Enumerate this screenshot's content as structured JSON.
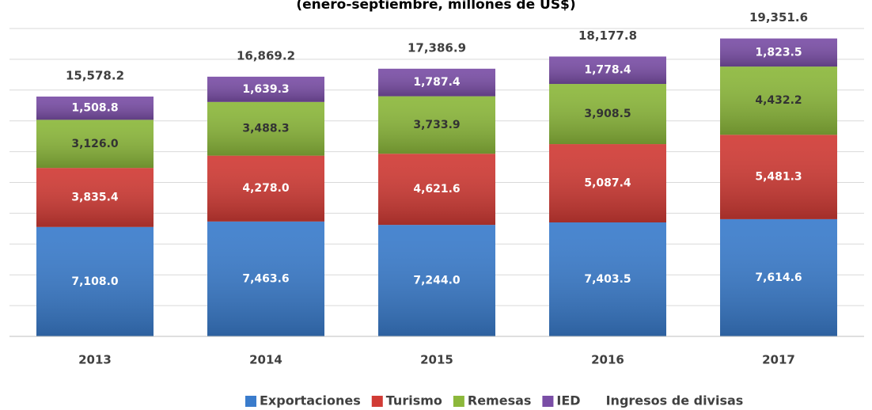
{
  "chart_data": {
    "type": "stacked_bar",
    "title": "(enero-septiembre, millones de US$)",
    "categories": [
      "2013",
      "2014",
      "2015",
      "2016",
      "2017"
    ],
    "series": [
      {
        "name": "Exportaciones",
        "color": "#3a7ccc",
        "values": [
          7108.0,
          7463.6,
          7244.0,
          7403.5,
          7614.6
        ],
        "value_labels": [
          "7,108.0",
          "7,463.6",
          "7,244.0",
          "7,403.5",
          "7,614.6"
        ]
      },
      {
        "name": "Turismo",
        "color": "#d13b35",
        "values": [
          3835.4,
          4278.0,
          4621.6,
          5087.4,
          5481.3
        ],
        "value_labels": [
          "3,835.4",
          "4,278.0",
          "4,621.6",
          "5,087.4",
          "5,481.3"
        ]
      },
      {
        "name": "Remesas",
        "color": "#8cb83b",
        "values": [
          3126.0,
          3488.3,
          3733.9,
          3908.5,
          4432.2
        ],
        "value_labels": [
          "3,126.0",
          "3,488.3",
          "3,733.9",
          "3,908.5",
          "4,432.2"
        ]
      },
      {
        "name": "IED",
        "color": "#7a4ea6",
        "values": [
          1508.8,
          1639.3,
          1787.4,
          1778.4,
          1823.5
        ],
        "value_labels": [
          "1,508.8",
          "1,639.3",
          "1,787.4",
          "1,778.4",
          "1,823.5"
        ]
      }
    ],
    "totals": {
      "name": "Ingresos de divisas",
      "values": [
        15578.2,
        16869.2,
        17386.9,
        18177.8,
        19351.6
      ],
      "value_labels": [
        "15,578.2",
        "16,869.2",
        "17,386.9",
        "18,177.8",
        "19,351.6"
      ]
    },
    "ylim": [
      0,
      20000
    ],
    "yticks": [
      0,
      2000,
      4000,
      6000,
      8000,
      10000,
      12000,
      14000,
      16000,
      18000,
      20000
    ],
    "grid": true
  }
}
